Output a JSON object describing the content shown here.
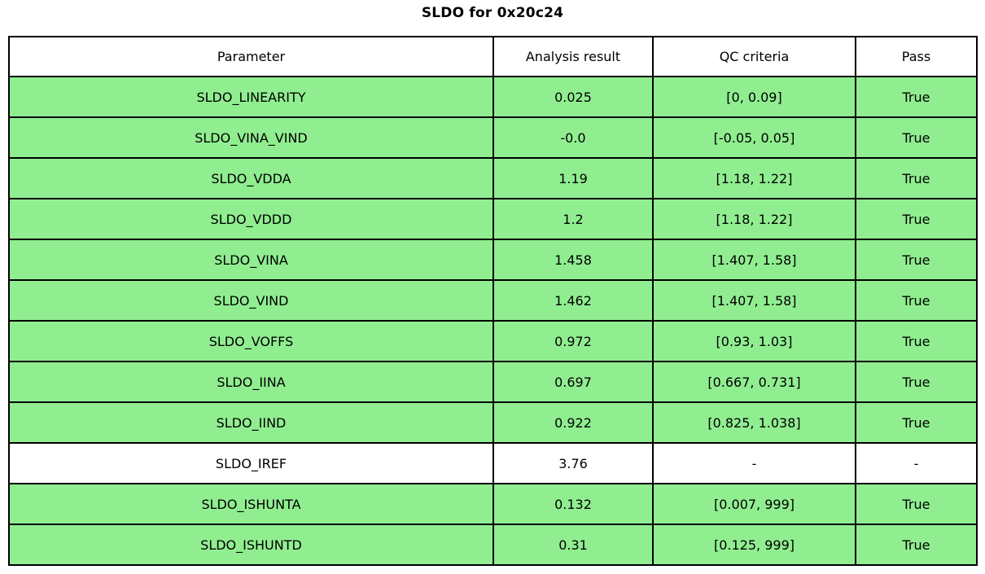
{
  "title": "SLDO for 0x20c24",
  "chart_data": {
    "type": "table",
    "title": "SLDO for 0x20c24",
    "columns": [
      "Parameter",
      "Analysis result",
      "QC criteria",
      "Pass"
    ],
    "rows": [
      {
        "parameter": "SLDO_LINEARITY",
        "analysis_result": "0.025",
        "qc_criteria": "[0, 0.09]",
        "pass": "True",
        "row_color": "#90ee90"
      },
      {
        "parameter": "SLDO_VINA_VIND",
        "analysis_result": "-0.0",
        "qc_criteria": "[-0.05, 0.05]",
        "pass": "True",
        "row_color": "#90ee90"
      },
      {
        "parameter": "SLDO_VDDA",
        "analysis_result": "1.19",
        "qc_criteria": "[1.18, 1.22]",
        "pass": "True",
        "row_color": "#90ee90"
      },
      {
        "parameter": "SLDO_VDDD",
        "analysis_result": "1.2",
        "qc_criteria": "[1.18, 1.22]",
        "pass": "True",
        "row_color": "#90ee90"
      },
      {
        "parameter": "SLDO_VINA",
        "analysis_result": "1.458",
        "qc_criteria": "[1.407, 1.58]",
        "pass": "True",
        "row_color": "#90ee90"
      },
      {
        "parameter": "SLDO_VIND",
        "analysis_result": "1.462",
        "qc_criteria": "[1.407, 1.58]",
        "pass": "True",
        "row_color": "#90ee90"
      },
      {
        "parameter": "SLDO_VOFFS",
        "analysis_result": "0.972",
        "qc_criteria": "[0.93, 1.03]",
        "pass": "True",
        "row_color": "#90ee90"
      },
      {
        "parameter": "SLDO_IINA",
        "analysis_result": "0.697",
        "qc_criteria": "[0.667, 0.731]",
        "pass": "True",
        "row_color": "#90ee90"
      },
      {
        "parameter": "SLDO_IIND",
        "analysis_result": "0.922",
        "qc_criteria": "[0.825, 1.038]",
        "pass": "True",
        "row_color": "#90ee90"
      },
      {
        "parameter": "SLDO_IREF",
        "analysis_result": "3.76",
        "qc_criteria": "-",
        "pass": "-",
        "row_color": "#ffffff"
      },
      {
        "parameter": "SLDO_ISHUNTA",
        "analysis_result": "0.132",
        "qc_criteria": "[0.007, 999]",
        "pass": "True",
        "row_color": "#90ee90"
      },
      {
        "parameter": "SLDO_ISHUNTD",
        "analysis_result": "0.31",
        "qc_criteria": "[0.125, 999]",
        "pass": "True",
        "row_color": "#90ee90"
      }
    ]
  },
  "colors": {
    "pass_row_green": "#90ee90",
    "header_white": "#ffffff",
    "border_black": "#000000"
  }
}
